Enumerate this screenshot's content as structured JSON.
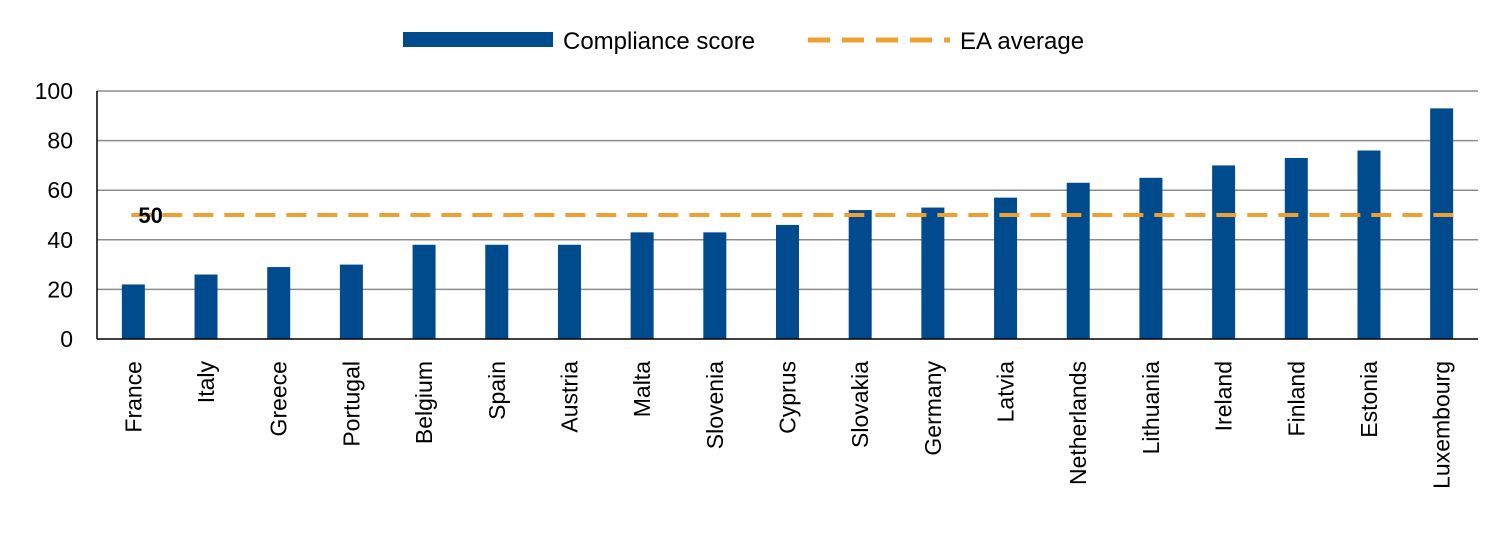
{
  "chart_data": {
    "type": "bar",
    "title": "",
    "xlabel": "",
    "ylabel": "",
    "ylim": [
      0,
      100
    ],
    "yticks": [
      0,
      20,
      40,
      60,
      80,
      100
    ],
    "grid": true,
    "legend_position": "top-center",
    "categories": [
      "France",
      "Italy",
      "Greece",
      "Portugal",
      "Belgium",
      "Spain",
      "Austria",
      "Malta",
      "Slovenia",
      "Cyprus",
      "Slovakia",
      "Germany",
      "Latvia",
      "Netherlands",
      "Lithuania",
      "Ireland",
      "Finland",
      "Estonia",
      "Luxembourg"
    ],
    "series": [
      {
        "name": "Compliance score",
        "color": "#004b8d",
        "values": [
          22,
          26,
          29,
          30,
          38,
          38,
          38,
          43,
          43,
          46,
          52,
          53,
          57,
          63,
          65,
          70,
          73,
          76,
          93
        ]
      }
    ],
    "reference_line": {
      "name": "EA average",
      "value": 50,
      "label": "50",
      "color": "#f0a030",
      "style": "dashed"
    }
  }
}
